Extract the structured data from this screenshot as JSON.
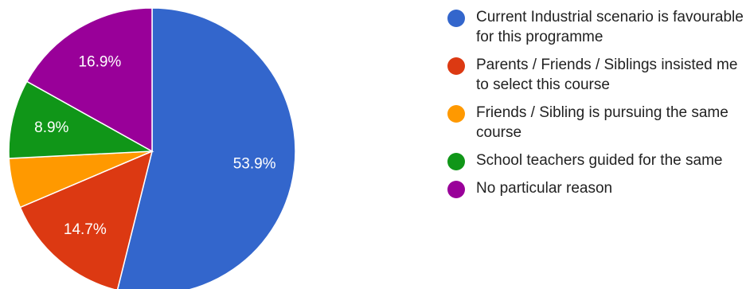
{
  "chart_data": {
    "type": "pie",
    "title": "",
    "start_angle_deg": 90,
    "direction": "clockwise",
    "legend_position": "right",
    "slices": [
      {
        "label": "Current Industrial scenario is favourable for this programme",
        "value": 53.9,
        "value_label": "53.9%",
        "color": "#3366cc"
      },
      {
        "label": "Parents / Friends / Siblings insisted me to select this course",
        "value": 14.7,
        "value_label": "14.7%",
        "color": "#dc3912"
      },
      {
        "label": "Friends / Sibling is pursuing the same course",
        "value": 5.6,
        "value_label": "",
        "color": "#ff9900"
      },
      {
        "label": "School teachers guided for the same",
        "value": 8.9,
        "value_label": "8.9%",
        "color": "#109618"
      },
      {
        "label": "No particular reason",
        "value": 16.9,
        "value_label": "16.9%",
        "color": "#990099"
      }
    ]
  }
}
